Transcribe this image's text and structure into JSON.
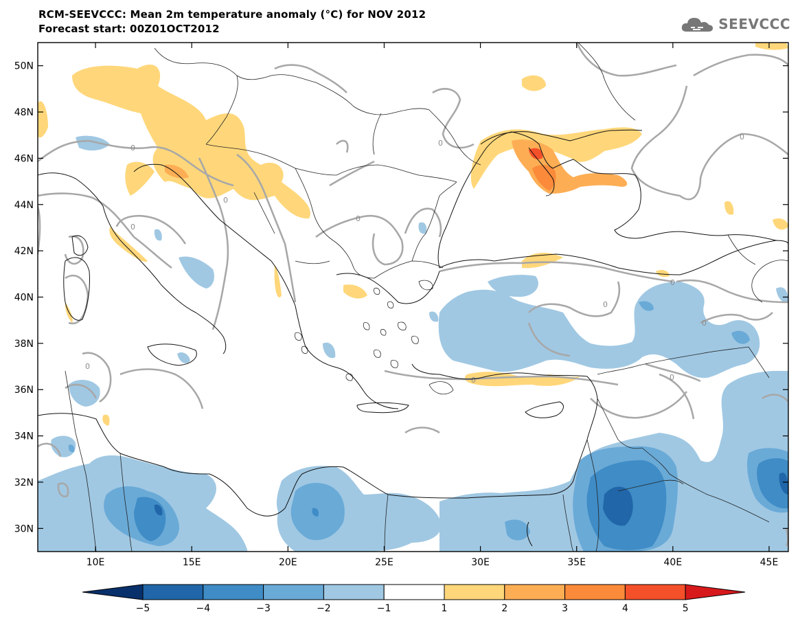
{
  "header": {
    "title": "RCM-SEEVCCC: Mean 2m temperature anomaly (°C) for NOV 2012",
    "subtitle": "Forecast start: 00Z01OCT2012"
  },
  "logo": {
    "text": "SEEVCCC",
    "icon": "cloud-icon"
  },
  "map": {
    "lon_range": [
      7,
      46
    ],
    "lat_range": [
      29,
      51
    ],
    "x_ticks": [
      {
        "value": 10,
        "label": "10E"
      },
      {
        "value": 15,
        "label": "15E"
      },
      {
        "value": 20,
        "label": "20E"
      },
      {
        "value": 25,
        "label": "25E"
      },
      {
        "value": 30,
        "label": "30E"
      },
      {
        "value": 35,
        "label": "35E"
      },
      {
        "value": 40,
        "label": "40E"
      },
      {
        "value": 45,
        "label": "45E"
      }
    ],
    "y_ticks": [
      {
        "value": 30,
        "label": "30N"
      },
      {
        "value": 32,
        "label": "32N"
      },
      {
        "value": 34,
        "label": "34N"
      },
      {
        "value": 36,
        "label": "36N"
      },
      {
        "value": 38,
        "label": "38N"
      },
      {
        "value": 40,
        "label": "40N"
      },
      {
        "value": 42,
        "label": "42N"
      },
      {
        "value": 44,
        "label": "44N"
      },
      {
        "value": 46,
        "label": "46N"
      },
      {
        "value": 48,
        "label": "48N"
      },
      {
        "value": 50,
        "label": "50N"
      }
    ],
    "contour_label": "0",
    "contour_color": "#a8a8a8"
  },
  "colorbar": {
    "labels": [
      "−5",
      "−4",
      "−3",
      "−2",
      "−1",
      "1",
      "2",
      "3",
      "4",
      "5"
    ],
    "colors": [
      "#08306b",
      "#2066a8",
      "#3f8cc6",
      "#6aaad7",
      "#a0c8e3",
      "#ffffff",
      "#ffd77a",
      "#fdae55",
      "#fb8a3a",
      "#f4502a",
      "#d7191c"
    ]
  }
}
